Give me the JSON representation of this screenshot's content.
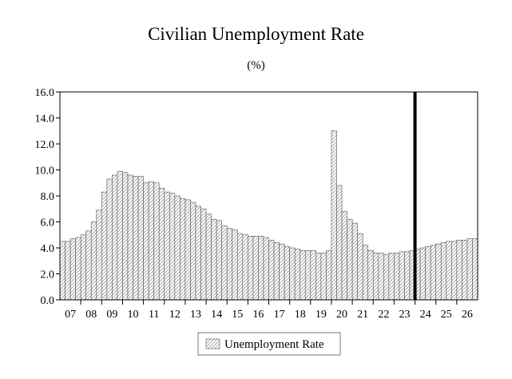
{
  "chart_data": {
    "type": "bar",
    "title": "Civilian Unemployment Rate",
    "subtitle": "(%)",
    "xlabel": "",
    "ylabel": "",
    "ylim": [
      0,
      16
    ],
    "yticks": [
      "0.0",
      "2.0",
      "4.0",
      "6.0",
      "8.0",
      "10.0",
      "12.0",
      "14.0",
      "16.0"
    ],
    "xtick_labels": [
      "07",
      "08",
      "09",
      "10",
      "11",
      "12",
      "13",
      "14",
      "15",
      "16",
      "17",
      "18",
      "19",
      "20",
      "21",
      "22",
      "23",
      "24",
      "25",
      "26"
    ],
    "quarters_start": "2007Q1",
    "forecast_divider": "2024Q1",
    "grid": false,
    "legend_position": "bottom-center",
    "series": [
      {
        "name": "Unemployment Rate",
        "values": [
          4.5,
          4.5,
          4.7,
          4.8,
          5.0,
          5.3,
          6.0,
          6.9,
          8.3,
          9.3,
          9.6,
          9.9,
          9.8,
          9.6,
          9.5,
          9.5,
          9.0,
          9.1,
          9.0,
          8.6,
          8.3,
          8.2,
          8.0,
          7.8,
          7.7,
          7.5,
          7.2,
          7.0,
          6.6,
          6.2,
          6.1,
          5.7,
          5.5,
          5.4,
          5.1,
          5.0,
          4.9,
          4.9,
          4.9,
          4.8,
          4.6,
          4.4,
          4.3,
          4.1,
          4.0,
          3.9,
          3.8,
          3.8,
          3.8,
          3.6,
          3.6,
          3.8,
          13.0,
          8.8,
          6.8,
          6.2,
          5.9,
          5.1,
          4.2,
          3.8,
          3.6,
          3.6,
          3.5,
          3.6,
          3.6,
          3.7,
          3.7,
          3.8,
          3.9,
          4.0,
          4.1,
          4.2,
          4.3,
          4.4,
          4.5,
          4.5,
          4.6,
          4.6,
          4.7,
          4.7
        ]
      }
    ]
  }
}
